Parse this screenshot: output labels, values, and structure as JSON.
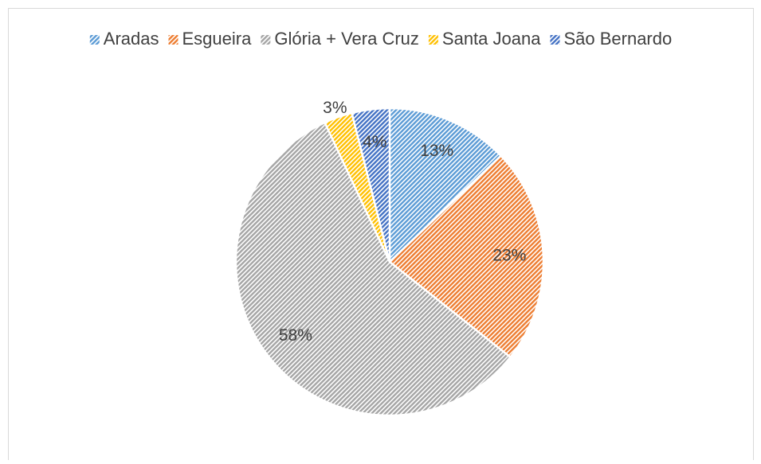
{
  "chart_data": {
    "type": "pie",
    "categories": [
      "Aradas",
      "Esgueira",
      "Glória + Vera Cruz",
      "Santa Joana",
      "São Bernardo"
    ],
    "values": [
      13,
      23,
      58,
      3,
      4
    ],
    "value_labels": [
      "13%",
      "23%",
      "58%",
      "3%",
      "4%"
    ],
    "colors": [
      "#5b9bd5",
      "#ed7d31",
      "#a5a5a5",
      "#ffc000",
      "#4472c4"
    ],
    "legend": "top"
  }
}
